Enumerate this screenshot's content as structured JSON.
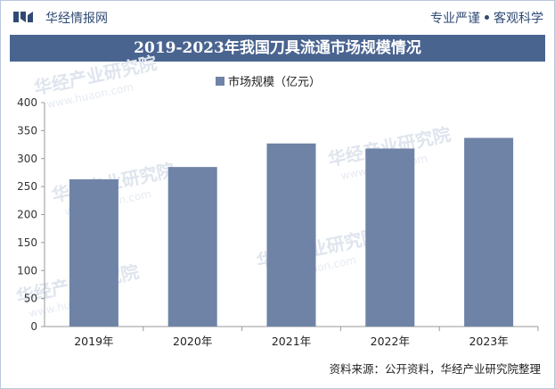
{
  "header": {
    "brand": "华经情报网",
    "slogan_left": "专业严谨",
    "slogan_right": "客观科学"
  },
  "footer": {
    "source": "资料来源：公开资料，华经产业研究院整理"
  },
  "watermark": {
    "text": "华经产业研究院",
    "url": "www.huaon.com"
  },
  "colors": {
    "bar": "#6f83a6",
    "title_bg": "#4a6490",
    "brand": "#2f4a73"
  },
  "chart_data": {
    "type": "bar",
    "title": "2019-2023年我国刀具流通市场规模情况",
    "categories": [
      "2019年",
      "2020年",
      "2021年",
      "2022年",
      "2023年"
    ],
    "series": [
      {
        "name": "市场规模（亿元）",
        "values": [
          263,
          285,
          327,
          318,
          337
        ]
      }
    ],
    "ylim": [
      0,
      400
    ],
    "yticks": [
      "0",
      "50",
      "100",
      "150",
      "200",
      "250",
      "300",
      "350",
      "400"
    ],
    "legend": "top-center",
    "grid": false
  }
}
